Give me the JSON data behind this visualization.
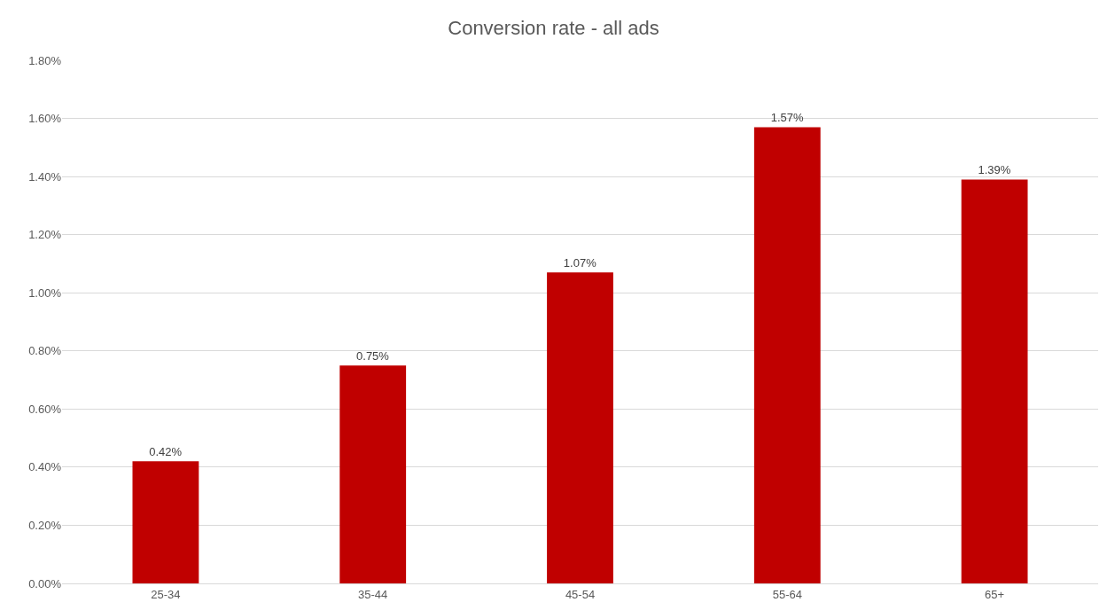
{
  "chart_data": {
    "type": "bar",
    "title": "Conversion rate - all ads",
    "categories": [
      "25-34",
      "35-44",
      "45-54",
      "55-64",
      "65+"
    ],
    "values": [
      0.42,
      0.75,
      1.07,
      1.57,
      1.39
    ],
    "value_labels": [
      "0.42%",
      "0.75%",
      "1.07%",
      "1.57%",
      "1.39%"
    ],
    "color": "#c00000",
    "ylim": [
      0,
      1.8
    ],
    "yticks": [
      {
        "value": 0,
        "label": "0.00%"
      },
      {
        "value": 0.2,
        "label": "0.20%"
      },
      {
        "value": 0.4,
        "label": "0.40%"
      },
      {
        "value": 0.6,
        "label": "0.60%"
      },
      {
        "value": 0.8,
        "label": "0.80%"
      },
      {
        "value": 1.0,
        "label": "1.00%"
      },
      {
        "value": 1.2,
        "label": "1.20%"
      },
      {
        "value": 1.4,
        "label": "1.40%"
      },
      {
        "value": 1.6,
        "label": "1.60%"
      },
      {
        "value": 1.8,
        "label": "1.80%"
      }
    ],
    "grid": "y",
    "legend": false
  }
}
